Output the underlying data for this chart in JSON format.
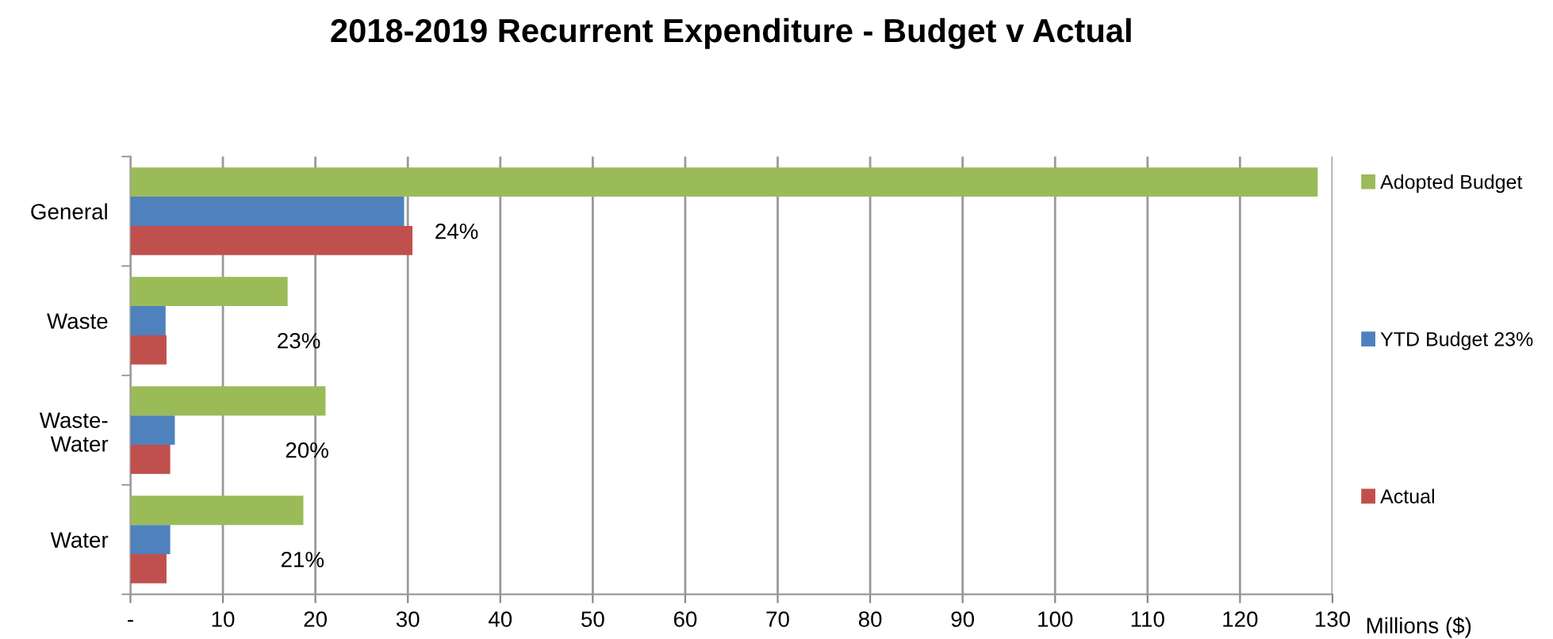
{
  "chart_data": {
    "type": "bar",
    "orientation": "horizontal",
    "title": "2018-2019 Recurrent Expenditure - Budget v Actual",
    "xlabel": "Millions ($)",
    "categories": [
      "General",
      "Waste",
      "Waste-\nWater",
      "Water"
    ],
    "series": [
      {
        "name": "Adopted Budget",
        "color": "#9bbb59",
        "values": [
          128.4,
          17.0,
          21.1,
          18.7
        ]
      },
      {
        "name": "YTD Budget 23%",
        "color": "#4f81bd",
        "values": [
          29.6,
          3.8,
          4.8,
          4.3
        ]
      },
      {
        "name": "Actual",
        "color": "#c0504d",
        "values": [
          30.5,
          3.9,
          4.3,
          3.9
        ]
      }
    ],
    "annotations": [
      "24%",
      "23%",
      "20%",
      "21%"
    ],
    "xlim": [
      0,
      130
    ],
    "xticks": [
      {
        "value": 0,
        "label": "-"
      },
      10,
      20,
      30,
      40,
      50,
      60,
      70,
      80,
      90,
      100,
      110,
      120,
      130
    ],
    "grid": "x",
    "legend": "right"
  }
}
